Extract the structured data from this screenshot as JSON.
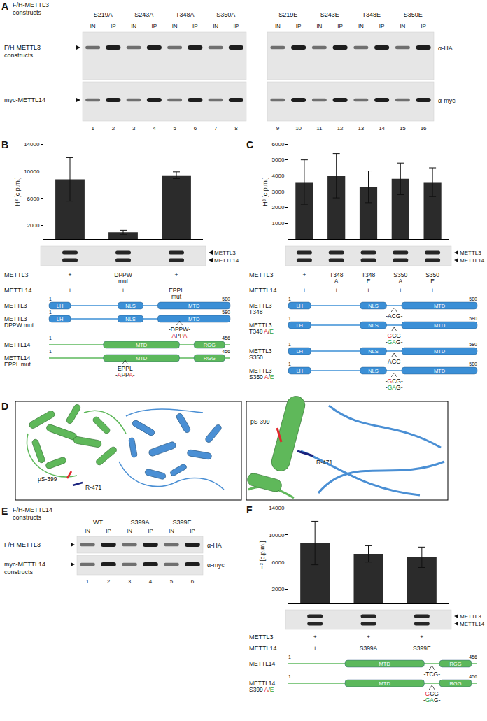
{
  "panels": {
    "A": {
      "label": "A",
      "header": [
        "F/H-METTL3",
        "constructs"
      ],
      "groups": [
        "S219A",
        "S243A",
        "T348A",
        "S350A",
        "S219E",
        "S243E",
        "T348E",
        "S350E"
      ],
      "lane_types": [
        "IN",
        "IP"
      ],
      "lanes": [
        1,
        2,
        3,
        4,
        5,
        6,
        7,
        8,
        9,
        10,
        11,
        12,
        13,
        14,
        15,
        16
      ],
      "rows": [
        {
          "label": [
            "F/H-METTL3",
            "constructs"
          ],
          "antibody": "α-HA"
        },
        {
          "label": [
            "myc-METTL14"
          ],
          "antibody": "α-myc"
        }
      ]
    },
    "B": {
      "label": "B",
      "blot_bands": [
        "METTL3",
        "METTL14"
      ],
      "table": {
        "rows": [
          {
            "name": "METTL3",
            "cells": [
              [
                "+"
              ],
              [
                "DPPW",
                "mut"
              ],
              [
                "+"
              ]
            ]
          },
          {
            "name": "METTL14",
            "cells": [
              [
                "+"
              ],
              [
                "+"
              ],
              [
                "EPPL",
                "mut"
              ]
            ]
          }
        ]
      },
      "diagrams": [
        {
          "name": [
            "METTL3"
          ],
          "start": 1,
          "end": 580,
          "color": "#3b8fd6",
          "domains": [
            "LH",
            "NLS",
            "MTD"
          ],
          "mutations": []
        },
        {
          "name": [
            "METTL3",
            "DPPW mut"
          ],
          "start": 1,
          "end": 580,
          "color": "#3b8fd6",
          "domains": [
            "LH",
            "NLS",
            "MTD"
          ],
          "mutations": [
            "-DPPW-",
            [
              "-",
              {
                "text": "A",
                "color": "red"
              },
              "PP",
              {
                "text": "A",
                "color": "red"
              },
              "-"
            ]
          ]
        },
        {
          "name": [
            "METTL14"
          ],
          "start": 1,
          "end": 456,
          "color": "#5cb85c",
          "domains": [
            "MTD",
            "RGG"
          ],
          "mutations": []
        },
        {
          "name": [
            "METTL14",
            "EPPL mut"
          ],
          "start": 1,
          "end": 456,
          "color": "#5cb85c",
          "domains": [
            "MTD",
            "RGG"
          ],
          "mutations": [
            "-EPPL-",
            [
              "-",
              {
                "text": "A",
                "color": "red"
              },
              "PP",
              {
                "text": "A",
                "color": "red"
              },
              "-"
            ]
          ]
        }
      ]
    },
    "C": {
      "label": "C",
      "blot_bands": [
        "METTL3",
        "METTL14"
      ],
      "table": {
        "rows": [
          {
            "name": "METTL3",
            "cells": [
              [
                "+"
              ],
              [
                "T348",
                "A"
              ],
              [
                "T348",
                "E"
              ],
              [
                "S350",
                "A"
              ],
              [
                "S350",
                "E"
              ]
            ]
          },
          {
            "name": "METTL14",
            "cells": [
              [
                "+"
              ],
              [
                "+"
              ],
              [
                "+"
              ],
              [
                "+"
              ],
              [
                "+"
              ]
            ]
          }
        ]
      },
      "diagrams": [
        {
          "name": [
            "METTL3",
            "T348"
          ],
          "start": 1,
          "end": 580,
          "color": "#3b8fd6",
          "domains": [
            "LH",
            "NLS",
            "MTD"
          ],
          "mutations": [
            "-ACG-"
          ]
        },
        {
          "name": [
            "METTL3",
            [
              "T348 ",
              {
                "text": "A",
                "color": "red"
              },
              "/",
              {
                "text": "E",
                "color": "green"
              }
            ]
          ],
          "start": 1,
          "end": 580,
          "color": "#3b8fd6",
          "domains": [
            "LH",
            "NLS",
            "MTD"
          ],
          "mutations": [
            [
              "-",
              {
                "text": "G",
                "color": "red"
              },
              "CG-"
            ],
            [
              "-",
              {
                "text": "GA",
                "color": "green"
              },
              "G-"
            ]
          ]
        },
        {
          "name": [
            "METTL3",
            "S350"
          ],
          "start": 1,
          "end": 580,
          "color": "#3b8fd6",
          "domains": [
            "LH",
            "NLS",
            "MTD"
          ],
          "mutations": [
            "-AGC-"
          ]
        },
        {
          "name": [
            "METTL3",
            [
              "S350 ",
              {
                "text": "A",
                "color": "red"
              },
              "/",
              {
                "text": "E",
                "color": "green"
              }
            ]
          ],
          "start": 1,
          "end": 580,
          "color": "#3b8fd6",
          "domains": [
            "LH",
            "NLS",
            "MTD"
          ],
          "mutations": [
            [
              "-",
              {
                "text": "G",
                "color": "red"
              },
              "CG-"
            ],
            [
              "-",
              {
                "text": "GA",
                "color": "green"
              },
              "G-"
            ]
          ]
        }
      ]
    },
    "D": {
      "label": "D",
      "views": [
        {
          "labels": [
            "pS-399",
            "R-471"
          ]
        },
        {
          "labels": [
            "pS-399",
            "R-471"
          ]
        }
      ]
    },
    "E": {
      "label": "E",
      "header": [
        "F/H-METTL14",
        "constructs"
      ],
      "groups": [
        "WT",
        "S399A",
        "S399E"
      ],
      "lane_types": [
        "IN",
        "IP"
      ],
      "lanes": [
        1,
        2,
        3,
        4,
        5,
        6
      ],
      "rows": [
        {
          "label": [
            "F/H-METTL3"
          ],
          "antibody": "α-HA"
        },
        {
          "label": [
            "myc-METTL14",
            "constructs"
          ],
          "antibody": "α-myc"
        }
      ]
    },
    "F": {
      "label": "F",
      "blot_bands": [
        "METTL3",
        "METTL14"
      ],
      "table": {
        "rows": [
          {
            "name": "METTL3",
            "cells": [
              [
                "+"
              ],
              [
                "+"
              ],
              [
                "+"
              ]
            ]
          },
          {
            "name": "METTL14",
            "cells": [
              [
                "+"
              ],
              [
                "S399A"
              ],
              [
                "S399E"
              ]
            ]
          }
        ]
      },
      "diagrams": [
        {
          "name": [
            "METTL14"
          ],
          "start": 1,
          "end": 456,
          "color": "#5cb85c",
          "domains": [
            "MTD",
            "RGG"
          ],
          "mutations": [
            "-TCG-"
          ]
        },
        {
          "name": [
            "METTL14",
            [
              "S399 ",
              {
                "text": "A",
                "color": "red"
              },
              "/",
              {
                "text": "E",
                "color": "green"
              }
            ]
          ],
          "start": 1,
          "end": 456,
          "color": "#5cb85c",
          "domains": [
            "MTD",
            "RGG"
          ],
          "mutations": [
            [
              "-",
              {
                "text": "G",
                "color": "red"
              },
              "CG-"
            ],
            [
              "-",
              {
                "text": "GA",
                "color": "green"
              },
              "G-"
            ]
          ]
        }
      ]
    }
  },
  "chart_data": [
    {
      "type": "bar",
      "y_label": "H³ [c.p.m.]",
      "categories": [
        null,
        null,
        null
      ],
      "values": [
        8800,
        1000,
        9400
      ],
      "errors": [
        3200,
        300,
        500
      ],
      "color": "#2b2b2b",
      "ylim": [
        0,
        14000
      ],
      "yticks": [
        2000,
        6000,
        10000,
        14000
      ],
      "grid": false,
      "tick_labels": "y"
    },
    {
      "type": "bar",
      "y_label": "H³ [c.p.m.]",
      "categories": [
        null,
        null,
        null,
        null,
        null
      ],
      "values": [
        3600,
        4000,
        3300,
        3800,
        3600
      ],
      "errors": [
        1400,
        1400,
        1000,
        1000,
        900
      ],
      "color": "#2b2b2b",
      "ylim": [
        0,
        6000
      ],
      "yticks": [
        1000,
        2000,
        3000,
        4000,
        5000,
        6000
      ],
      "grid": false,
      "tick_labels": "y"
    },
    {
      "type": "bar",
      "y_label": "H³ [c.p.m.]",
      "categories": [
        null,
        null,
        null
      ],
      "values": [
        8800,
        7200,
        6700
      ],
      "errors": [
        3200,
        1200,
        1500
      ],
      "color": "#2b2b2b",
      "ylim": [
        0,
        14000
      ],
      "yticks": [
        2000,
        6000,
        10000,
        14000
      ],
      "grid": false,
      "tick_labels": "y"
    }
  ]
}
